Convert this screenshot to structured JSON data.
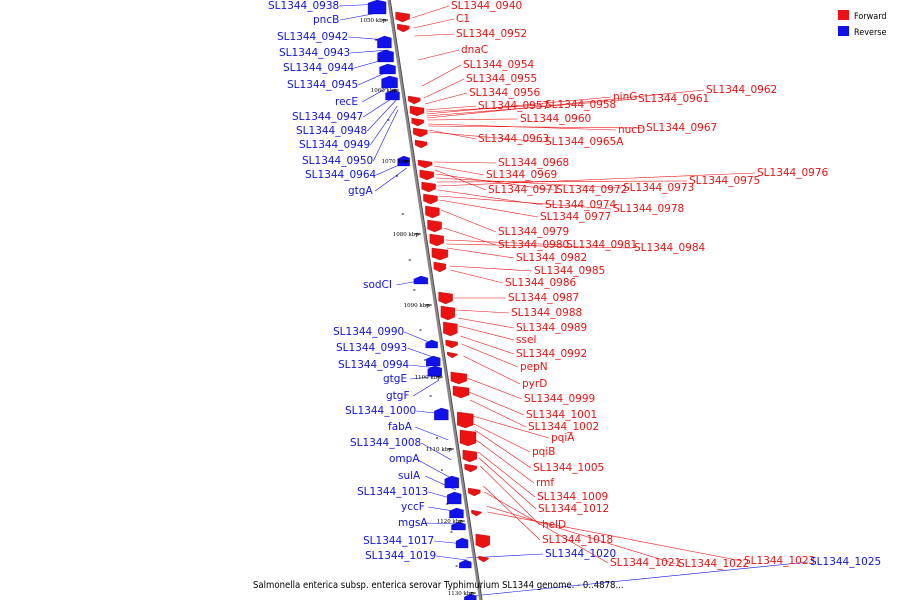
{
  "legend": [
    {
      "label": "Forward",
      "color": "#ee1111"
    },
    {
      "label": "Reverse",
      "color": "#1111ee"
    }
  ],
  "caption": "Salmonella enterica subsp. enterica serovar Typhimurium SL1344 genome. - 0..4878...",
  "axis_ticks": [
    "1050 kbp",
    "1060 kbp",
    "1070 kbp",
    "1080 kbp",
    "1090 kbp",
    "1100 kbp",
    "1110 kbp",
    "1120 kbp",
    "1130 kbp"
  ],
  "forward_labels": [
    "SL1344_0940",
    "C1",
    "SL1344_0952",
    "dnaC",
    "SL1344_0954",
    "SL1344_0955",
    "SL1344_0956",
    "SL1344_0957",
    "SL1344_0958",
    "ninG",
    "SL1344_0961",
    "SL1344_0962",
    "SL1344_0960",
    "nucD",
    "SL1344_0967",
    "SL1344_0963",
    "SL1344_0965A",
    "SL1344_0968",
    "SL1344_0969",
    "SL1344_0971",
    "SL1344_0972",
    "SL1344_0973",
    "SL1344_0975",
    "SL1344_0976",
    "SL1344_0974",
    "SL1344_0978",
    "SL1344_0977",
    "SL1344_0979",
    "SL1344_0980",
    "SL1344_0981",
    "SL1344_0984",
    "SL1344_0982",
    "SL1344_0985",
    "SL1344_0986",
    "SL1344_0987",
    "SL1344_0988",
    "SL1344_0989",
    "sseI",
    "SL1344_0992",
    "pepN",
    "pyrD",
    "SL1344_0999",
    "SL1344_1001",
    "SL1344_1002",
    "pqiA",
    "pqiB",
    "SL1344_1005",
    "rmf",
    "SL1344_1009",
    "SL1344_1012",
    "helD",
    "SL1344_1018",
    "SL1344_1021",
    "SL1344_1022",
    "SL1344_1023"
  ],
  "reverse_labels": [
    "SL1344_0938",
    "pncB",
    "SL1344_0942",
    "SL1344_0943",
    "SL1344_0944",
    "SL1344_0945",
    "recE",
    "SL1344_0947",
    "SL1344_0948",
    "SL1344_0949",
    "SL1344_0950",
    "SL1344_0964",
    "gtgA",
    "sodCI",
    "SL1344_0990",
    "SL1344_0993",
    "SL1344_0994",
    "gtgE",
    "gtgF",
    "SL1344_1000",
    "fabA",
    "SL1344_1008",
    "ompA",
    "sulA",
    "SL1344_1013",
    "yccF",
    "mgsA",
    "SL1344_1017",
    "SL1344_1019",
    "SL1344_1020",
    "SL1344_1025"
  ]
}
